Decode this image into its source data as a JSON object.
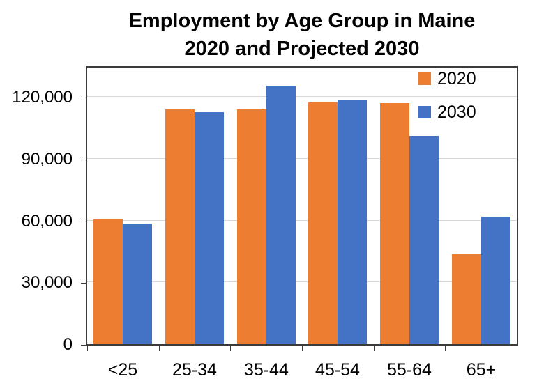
{
  "title": {
    "line1": "Employment by Age Group in Maine",
    "line2": "2020 and Projected 2030"
  },
  "chart_data": {
    "type": "bar",
    "title": "Employment by Age Group in Maine 2020 and Projected 2030",
    "categories": [
      "<25",
      "25-34",
      "35-44",
      "45-54",
      "55-64",
      "65+"
    ],
    "series": [
      {
        "name": "2020",
        "color": "#ED7D31",
        "values": [
          60500,
          114000,
          114000,
          117500,
          117000,
          43500
        ]
      },
      {
        "name": "2030",
        "color": "#4472C4",
        "values": [
          58500,
          112500,
          125500,
          118500,
          101000,
          62000
        ]
      }
    ],
    "xlabel": "",
    "ylabel": "",
    "ylim": [
      0,
      135000
    ],
    "yticks": [
      0,
      30000,
      60000,
      90000,
      120000
    ],
    "ytick_labels": [
      "0",
      "30,000",
      "60,000",
      "90,000",
      "120,000"
    ],
    "grid": "horizontal-major",
    "legend_position": "top-right-inside"
  },
  "legend": {
    "items": [
      {
        "label": "2020",
        "color": "#ED7D31"
      },
      {
        "label": "2030",
        "color": "#4472C4"
      }
    ]
  },
  "colors": {
    "series_2020": "#ED7D31",
    "series_2030": "#4472C4",
    "gridline": "#D9D9D9",
    "axis_border": "#3B3B3B",
    "background": "#FFFFFF",
    "text": "#000000"
  }
}
